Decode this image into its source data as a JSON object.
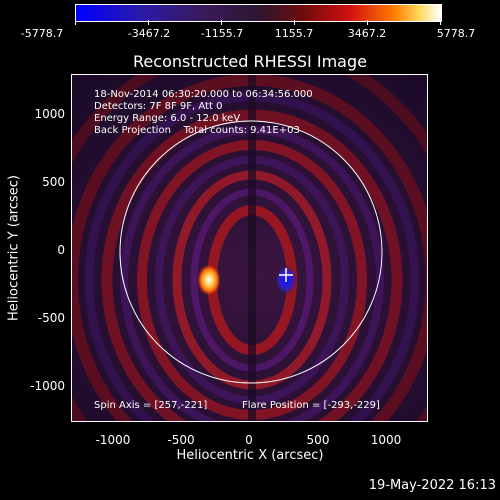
{
  "colorbar": {
    "ticks": [
      "-5778.7",
      "-3467.2",
      "-1155.7",
      "1155.7",
      "3467.2",
      "5778.7"
    ]
  },
  "plot": {
    "title": "Reconstructed RHESSI Image",
    "info_lines": [
      "18-Nov-2014 06:30:20.000 to 06:34:56.000",
      "Detectors: 7F 8F 9F, Att 0",
      "Energy Range: 6.0 - 12.0 keV",
      "Back Projection    Total counts: 9.41E+03"
    ],
    "spin_axis": "Spin Axis = [257,-221]",
    "flare_position": "Flare Position = [-293,-229]",
    "x_axis": {
      "title": "Heliocentric X (arcsec)",
      "ticks": [
        "-1000",
        "-500",
        "0",
        "500",
        "1000"
      ]
    },
    "y_axis": {
      "title": "Heliocentric Y (arcsec)",
      "ticks": [
        "1000",
        "500",
        "0",
        "-500",
        "-1000"
      ]
    }
  },
  "timestamp": "19-May-2022 16:13"
}
